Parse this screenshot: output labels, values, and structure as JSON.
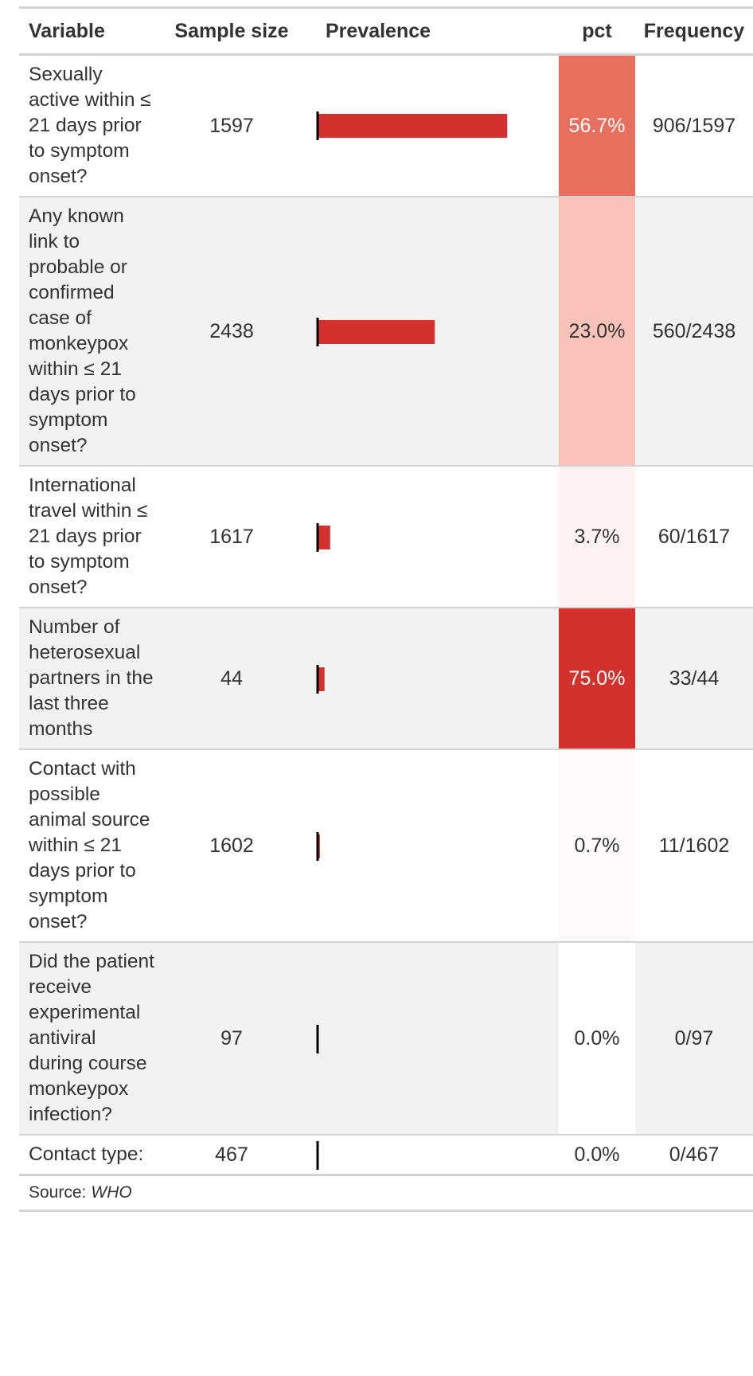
{
  "header": {
    "variable": "Variable",
    "sample_size": "Sample size",
    "prevalence": "Prevalence",
    "pct": "pct",
    "frequency": "Frequency"
  },
  "rows": [
    {
      "variable": "Sexually active within ≤ 21 days prior to symptom onset?",
      "sample_size": "1597",
      "pct": "56.7%",
      "frequency": "906/1597",
      "pct_color": "#e66f5e",
      "pct_text_color": "#ffffff"
    },
    {
      "variable": "Any known link to probable or confirmed case of monkeypox within ≤ 21 days prior to symptom onset?",
      "sample_size": "2438",
      "pct": "23.0%",
      "frequency": "560/2438",
      "pct_color": "#f9c3b9",
      "pct_text_color": "#333333"
    },
    {
      "variable": "International travel within ≤ 21 days prior to symptom onset?",
      "sample_size": "1617",
      "pct": "3.7%",
      "frequency": "60/1617",
      "pct_color": "#fdf2f0",
      "pct_text_color": "#333333"
    },
    {
      "variable": "Number of heterosexual partners in the last three months",
      "sample_size": "44",
      "pct": "75.0%",
      "frequency": "33/44",
      "pct_color": "#d2312d",
      "pct_text_color": "#ffffff"
    },
    {
      "variable": "Contact with possible animal source within ≤ 21 days prior to symptom onset?",
      "sample_size": "1602",
      "pct": "0.7%",
      "frequency": "11/1602",
      "pct_color": "#fefafa",
      "pct_text_color": "#333333"
    },
    {
      "variable": "Did the patient receive experimental antiviral during course monkeypox infection?",
      "sample_size": "97",
      "pct": "0.0%",
      "frequency": "0/97",
      "pct_color": "#ffffff",
      "pct_text_color": "#333333"
    },
    {
      "variable": "Contact type:",
      "sample_size": "467",
      "pct": "0.0%",
      "frequency": "0/467",
      "pct_color": "#ffffff",
      "pct_text_color": "#333333"
    }
  ],
  "source": {
    "label": "Source:",
    "value": "WHO"
  },
  "chart_data": {
    "type": "bar",
    "orientation": "horizontal",
    "categories": [
      "Sexually active within ≤ 21 days prior to symptom onset?",
      "Any known link to probable or confirmed case of monkeypox within ≤ 21 days prior to symptom onset?",
      "International travel within ≤ 21 days prior to symptom onset?",
      "Number of heterosexual partners in the last three months",
      "Contact with possible animal source within ≤ 21 days prior to symptom onset?",
      "Did the patient receive experimental antiviral during course monkeypox infection?",
      "Contact type:"
    ],
    "values": [
      906,
      560,
      60,
      33,
      11,
      0,
      0
    ],
    "xlim": [
      0,
      1000
    ],
    "bar_color": "#d2312d",
    "baseline_color": "#000000"
  }
}
